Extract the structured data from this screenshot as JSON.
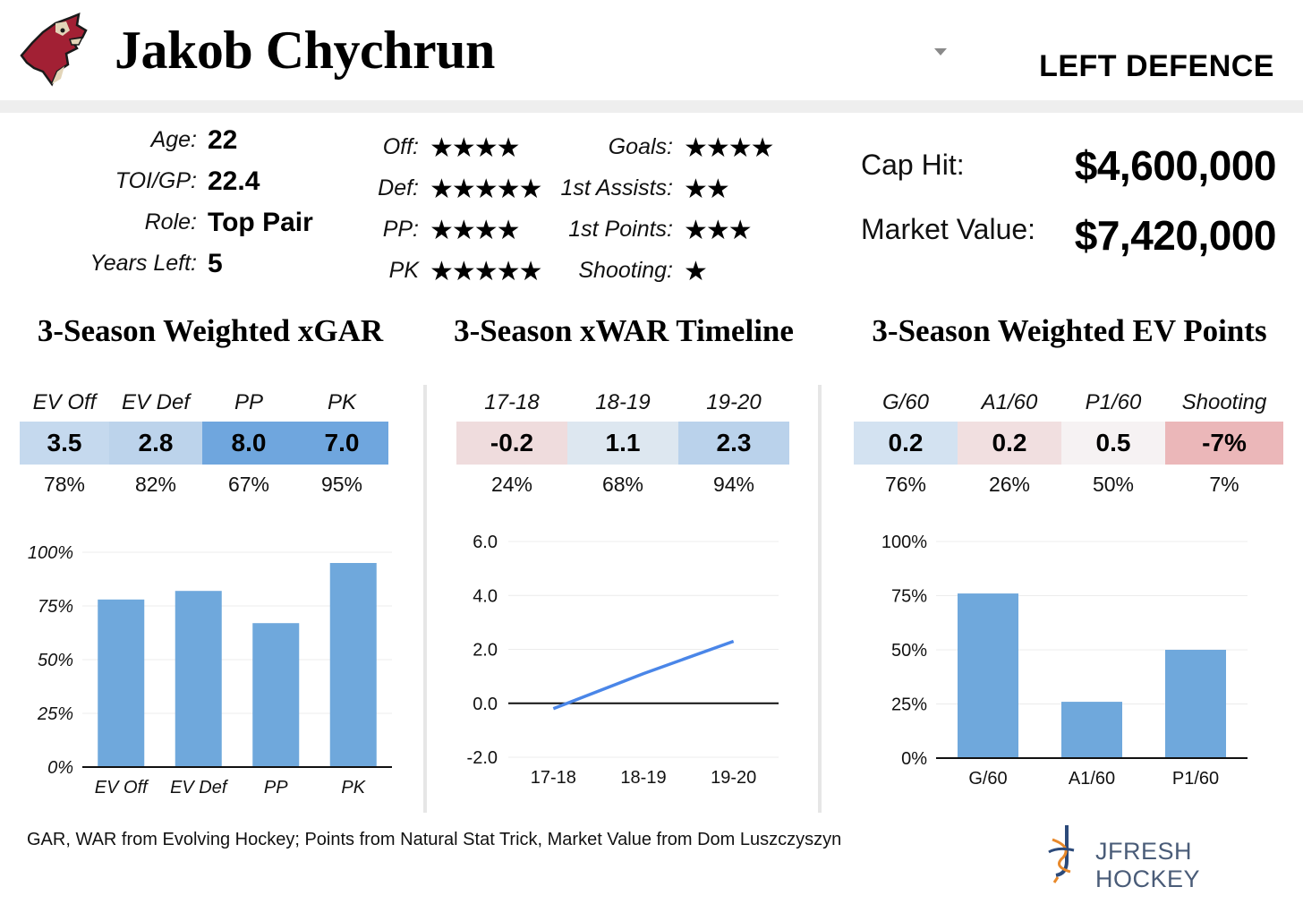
{
  "header": {
    "player_name": "Jakob Chychrun",
    "position": "LEFT DEFENCE",
    "logo_icon": "coyote-head-logo",
    "dropdown_icon": "caret-down-icon"
  },
  "bio": [
    {
      "label": "Age:",
      "value": "22"
    },
    {
      "label": "TOI/GP:",
      "value": "22.4"
    },
    {
      "label": "Role:",
      "value": "Top Pair"
    },
    {
      "label": "Years Left:",
      "value": "5"
    }
  ],
  "ratings_left": [
    {
      "label": "Off:",
      "stars": "★★★★"
    },
    {
      "label": "Def:",
      "stars": "★★★★★"
    },
    {
      "label": "PP:",
      "stars": "★★★★"
    },
    {
      "label": "PK",
      "stars": "★★★★★"
    }
  ],
  "ratings_right": [
    {
      "label": "Goals:",
      "stars": "★★★★"
    },
    {
      "label": "1st Assists:",
      "stars": "★★"
    },
    {
      "label": "1st Points:",
      "stars": "★★★"
    },
    {
      "label": "Shooting:",
      "stars": "★"
    }
  ],
  "contract": {
    "cap_hit_label": "Cap Hit:",
    "cap_hit_value": "$4,600,000",
    "market_value_label": "Market Value:",
    "market_value_value": "$7,420,000"
  },
  "sections": {
    "xgar_title": "3-Season Weighted xGAR",
    "xwar_title": "3-Season xWAR Timeline",
    "ev_points_title": "3-Season Weighted EV Points"
  },
  "xgar_table": [
    {
      "header": "EV Off",
      "value": "3.5",
      "pct": "78%",
      "color": "#c5d9ee"
    },
    {
      "header": "EV Def",
      "value": "2.8",
      "pct": "82%",
      "color": "#bcd3eb"
    },
    {
      "header": "PP",
      "value": "8.0",
      "pct": "67%",
      "color": "#6fa6de"
    },
    {
      "header": "PK",
      "value": "7.0",
      "pct": "95%",
      "color": "#6fa6de"
    }
  ],
  "xwar_table": [
    {
      "header": "17-18",
      "value": "-0.2",
      "pct": "24%",
      "color": "#efdcdd"
    },
    {
      "header": "18-19",
      "value": "1.1",
      "pct": "68%",
      "color": "#dde7f0"
    },
    {
      "header": "19-20",
      "value": "2.3",
      "pct": "94%",
      "color": "#bad2eb"
    }
  ],
  "ev_table": [
    {
      "header": "G/60",
      "value": "0.2",
      "pct": "76%",
      "color": "#d3e2f1"
    },
    {
      "header": "A1/60",
      "value": "0.2",
      "pct": "26%",
      "color": "#f1dfe0"
    },
    {
      "header": "P1/60",
      "value": "0.5",
      "pct": "50%",
      "color": "#f6f2f3"
    },
    {
      "header": "Shooting",
      "value": "-7%",
      "pct": "7%",
      "color": "#ebb7b9"
    }
  ],
  "chart_data": [
    {
      "type": "bar",
      "categories": [
        "EV Off",
        "EV Def",
        "PP",
        "PK"
      ],
      "values": [
        78,
        82,
        67,
        95
      ],
      "ylim": [
        0,
        100
      ],
      "yticks": [
        "0%",
        "25%",
        "50%",
        "75%",
        "100%"
      ],
      "tick_style": "italic",
      "bar_color": "#6fa8dc",
      "grid": true
    },
    {
      "type": "line",
      "categories": [
        "17-18",
        "18-19",
        "19-20"
      ],
      "values": [
        -0.2,
        1.1,
        2.3
      ],
      "ylim": [
        -2,
        6
      ],
      "yticks": [
        "-2.0",
        "0.0",
        "2.0",
        "4.0",
        "6.0"
      ],
      "line_color": "#4a86e8",
      "grid": true
    },
    {
      "type": "bar",
      "categories": [
        "G/60",
        "A1/60",
        "P1/60"
      ],
      "values": [
        76,
        26,
        50
      ],
      "ylim": [
        0,
        100
      ],
      "yticks": [
        "0%",
        "25%",
        "50%",
        "75%",
        "100%"
      ],
      "tick_style": "normal",
      "bar_color": "#6fa8dc",
      "grid": true
    }
  ],
  "footer": {
    "source_note": "GAR, WAR from Evolving Hockey; Points from Natural Stat Trick, Market Value from Dom Luszczyszyn",
    "brand": "JFRESH HOCKEY",
    "brand_icon": "jfresh-logo-icon"
  }
}
